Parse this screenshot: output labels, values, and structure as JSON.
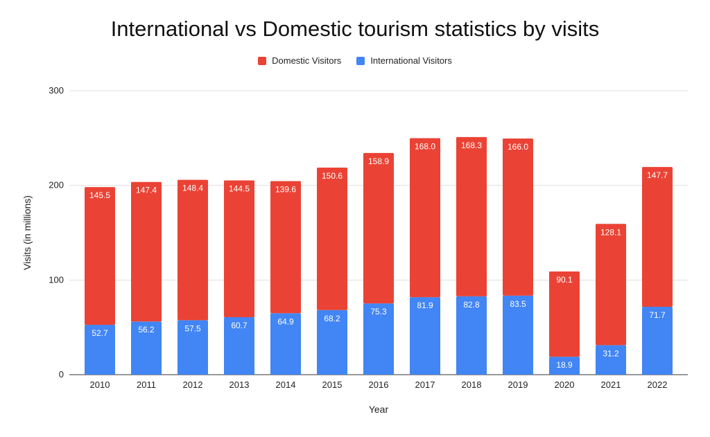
{
  "chart_data": {
    "type": "bar",
    "stacked": true,
    "title": "International vs Domestic tourism statistics by visits",
    "xlabel": "Year",
    "ylabel": "Visits (in millions)",
    "ylim": [
      0,
      300
    ],
    "yticks": [
      0,
      100,
      200,
      300
    ],
    "grid": true,
    "legend_position": "top-center",
    "categories": [
      "2010",
      "2011",
      "2012",
      "2013",
      "2014",
      "2015",
      "2016",
      "2017",
      "2018",
      "2019",
      "2020",
      "2021",
      "2022"
    ],
    "series": [
      {
        "name": "International Visitors",
        "color": "#4285f4",
        "values": [
          52.7,
          56.2,
          57.5,
          60.7,
          64.9,
          68.2,
          75.3,
          81.9,
          82.8,
          83.5,
          18.9,
          31.2,
          71.7
        ]
      },
      {
        "name": "Domestic Visitors",
        "color": "#ea4335",
        "values": [
          145.5,
          147.4,
          148.4,
          144.5,
          139.6,
          150.6,
          158.9,
          168.0,
          168.3,
          166.0,
          90.1,
          128.1,
          147.7
        ]
      }
    ],
    "legend": [
      {
        "name": "Domestic Visitors",
        "color": "#ea4335"
      },
      {
        "name": "International Visitors",
        "color": "#4285f4"
      }
    ]
  }
}
